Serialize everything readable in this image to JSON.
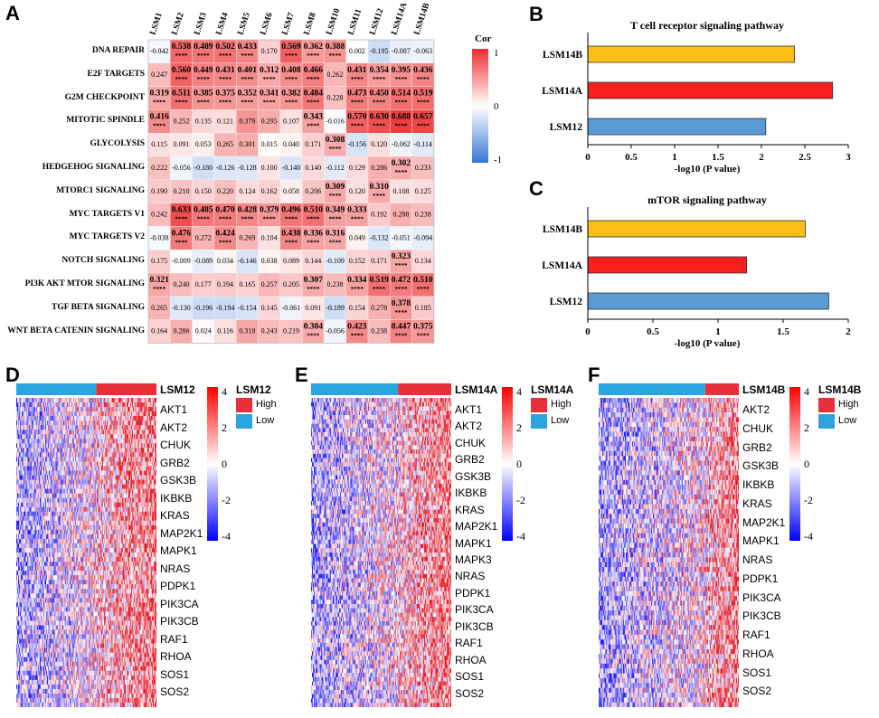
{
  "panels": {
    "a": "A",
    "b": "B",
    "c": "C",
    "d": "D",
    "e": "E",
    "f": "F"
  },
  "corr_heatmap": {
    "legend_title": "Cor",
    "legend_ticks": [
      "1",
      "0",
      "-1"
    ],
    "columns": [
      "LSM1",
      "LSM2",
      "LSM3",
      "LSM4",
      "LSM5",
      "LSM6",
      "LSM7",
      "LSM8",
      "LSM10",
      "LSM11",
      "LSM12",
      "LSM14A",
      "LSM14B"
    ],
    "rows": [
      "DNA REPAIR",
      "E2F TARGETS",
      "G2M CHECKPOINT",
      "MITOTIC SPINDLE",
      "GLYCOLYSIS",
      "HEDGEHOG SIGNALING",
      "MTORC1 SIGNALING",
      "MYC TARGETS V1",
      "MYC TARGETS V2",
      "NOTCH SIGNALING",
      "PI3K AKT MTOR SIGNALING",
      "TGF BETA SIGNALING",
      "WNT BETA CATENIN SIGNALING"
    ],
    "values": [
      [
        "-0.042",
        "0.538",
        "0.489",
        "0.502",
        "0.433",
        "0.170",
        "0.569",
        "0.362",
        "0.388",
        "0.002",
        "-0.195",
        "-0.087",
        "-0.063"
      ],
      [
        "0.247",
        "0.560",
        "0.449",
        "0.431",
        "0.401",
        "0.312",
        "0.408",
        "0.466",
        "0.262",
        "0.431",
        "0.354",
        "0.395",
        "0.436"
      ],
      [
        "0.319",
        "0.511",
        "0.385",
        "0.375",
        "0.352",
        "0.341",
        "0.382",
        "0.484",
        "0.228",
        "0.473",
        "0.450",
        "0.514",
        "0.519"
      ],
      [
        "0.416",
        "0.252",
        "0.135",
        "0.121",
        "0.379",
        "0.295",
        "0.107",
        "0.343",
        "-0.016",
        "0.570",
        "0.630",
        "0.688",
        "0.657"
      ],
      [
        "0.115",
        "0.091",
        "0.053",
        "0.265",
        "0.301",
        "0.015",
        "0.040",
        "0.171",
        "0.308",
        "-0.156",
        "0.120",
        "-0.062",
        "-0.114"
      ],
      [
        "0.222",
        "-0.056",
        "-0.180",
        "-0.126",
        "-0.128",
        "0.100",
        "-0.140",
        "0.140",
        "-0.112",
        "0.129",
        "0.286",
        "0.302",
        "0.233"
      ],
      [
        "0.190",
        "0.210",
        "0.150",
        "0.220",
        "0.124",
        "0.162",
        "0.058",
        "0.206",
        "0.309",
        "0.120",
        "0.310",
        "0.108",
        "0.125"
      ],
      [
        "0.242",
        "0.633",
        "0.485",
        "0.470",
        "0.428",
        "0.379",
        "0.496",
        "0.510",
        "0.349",
        "0.333",
        "0.192",
        "0.288",
        "0.238"
      ],
      [
        "-0.038",
        "0.476",
        "0.272",
        "0.424",
        "0.269",
        "0.104",
        "0.438",
        "0.336",
        "0.316",
        "0.049",
        "-0.132",
        "-0.051",
        "-0.094"
      ],
      [
        "0.175",
        "-0.009",
        "-0.089",
        "0.034",
        "-0.146",
        "0.038",
        "0.089",
        "0.144",
        "-0.109",
        "0.152",
        "0.171",
        "0.323",
        "0.134"
      ],
      [
        "0.321",
        "0.240",
        "0.177",
        "0.194",
        "0.165",
        "0.257",
        "0.205",
        "0.307",
        "0.238",
        "0.334",
        "0.519",
        "0.472",
        "0.510"
      ],
      [
        "0.265",
        "-0.130",
        "-0.196",
        "-0.194",
        "-0.154",
        "0.145",
        "-0.061",
        "0.091",
        "-0.189",
        "0.154",
        "0.278",
        "0.378",
        "0.185"
      ],
      [
        "0.164",
        "0.286",
        "0.024",
        "0.116",
        "0.318",
        "0.243",
        "0.219",
        "0.304",
        "-0.056",
        "0.423",
        "0.238",
        "0.447",
        "0.375"
      ]
    ],
    "significance": [
      [
        "",
        "****",
        "****",
        "****",
        "****",
        "",
        "****",
        "****",
        "****",
        "",
        "",
        "",
        ""
      ],
      [
        "",
        "****",
        "****",
        "****",
        "****",
        "****",
        "****",
        "****",
        "",
        "****",
        "****",
        "****",
        "****"
      ],
      [
        "****",
        "****",
        "****",
        "****",
        "****",
        "****",
        "****",
        "****",
        "",
        "****",
        "****",
        "****",
        "****"
      ],
      [
        "****",
        "",
        "",
        "",
        "",
        "",
        "",
        "****",
        "",
        "****",
        "****",
        "****",
        "****"
      ],
      [
        "",
        "",
        "",
        "",
        "",
        "",
        "",
        "",
        "****",
        "",
        "",
        "",
        ""
      ],
      [
        "",
        "",
        "",
        "",
        "",
        "",
        "",
        "",
        "",
        "",
        "",
        "****",
        ""
      ],
      [
        "",
        "",
        "",
        "",
        "",
        "",
        "",
        "",
        "****",
        "",
        "****",
        "",
        ""
      ],
      [
        "",
        "****",
        "****",
        "****",
        "****",
        "****",
        "****",
        "****",
        "****",
        "****",
        "",
        "",
        ""
      ],
      [
        "",
        "****",
        "",
        "****",
        "",
        "",
        "****",
        "****",
        "****",
        "",
        "",
        "",
        ""
      ],
      [
        "",
        "",
        "",
        "",
        "",
        "",
        "",
        "",
        "",
        "",
        "",
        "****",
        ""
      ],
      [
        "****",
        "",
        "",
        "",
        "",
        "",
        "",
        "****",
        "",
        "****",
        "****",
        "****",
        "****"
      ],
      [
        "",
        "",
        "",
        "",
        "",
        "",
        "",
        "",
        "",
        "",
        "",
        "****",
        ""
      ],
      [
        "",
        "",
        "",
        "",
        "",
        "",
        "",
        "****",
        "",
        "****",
        "",
        "****",
        "****"
      ]
    ]
  },
  "chart_data": [
    {
      "type": "bar",
      "orientation": "horizontal",
      "title": "T cell receptor signaling pathway",
      "xlabel": "-log10 (P value)",
      "categories": [
        "LSM14B",
        "LSM14A",
        "LSM12"
      ],
      "values": [
        2.38,
        2.82,
        2.05
      ],
      "colors": [
        "#fbbf15",
        "#f51f1f",
        "#5b9bd5"
      ],
      "xlim": [
        0,
        3
      ],
      "xticks": [
        "0",
        "0.5",
        "1",
        "1.5",
        "2",
        "2.5",
        "3"
      ]
    },
    {
      "type": "bar",
      "orientation": "horizontal",
      "title": "mTOR signaling pathway",
      "xlabel": "-log10 (P value)",
      "categories": [
        "LSM14B",
        "LSM14A",
        "LSM12"
      ],
      "values": [
        1.67,
        1.22,
        1.85
      ],
      "colors": [
        "#fbbf15",
        "#f51f1f",
        "#5b9bd5"
      ],
      "xlim": [
        0,
        2
      ],
      "xticks": [
        "0",
        "0.5",
        "1",
        "1.5",
        "2"
      ]
    }
  ],
  "expr_heatmaps": [
    {
      "id": "d",
      "label": "LSM12",
      "split": 0.57,
      "scale_ticks": [
        "4",
        "2",
        "0",
        "-2",
        "-4"
      ],
      "legend_high": "High",
      "legend_low": "Low",
      "genes": [
        "AKT1",
        "AKT2",
        "CHUK",
        "GRB2",
        "GSK3B",
        "IKBKB",
        "KRAS",
        "MAP2K1",
        "MAPK1",
        "NRAS",
        "PDPK1",
        "PIK3CA",
        "PIK3CB",
        "RAF1",
        "RHOA",
        "SOS1",
        "SOS2"
      ]
    },
    {
      "id": "e",
      "label": "LSM14A",
      "split": 0.62,
      "scale_ticks": [
        "4",
        "2",
        "0",
        "-2",
        "-4"
      ],
      "legend_high": "High",
      "legend_low": "Low",
      "genes": [
        "AKT1",
        "AKT2",
        "CHUK",
        "GRB2",
        "GSK3B",
        "IKBKB",
        "KRAS",
        "MAP2K1",
        "MAPK1",
        "MAPK3",
        "NRAS",
        "PDPK1",
        "PIK3CA",
        "PIK3CB",
        "RAF1",
        "RHOA",
        "SOS1",
        "SOS2"
      ]
    },
    {
      "id": "f",
      "label": "LSM14B",
      "split": 0.76,
      "scale_ticks": [
        "4",
        "2",
        "0",
        "-2",
        "-4"
      ],
      "legend_high": "High",
      "legend_low": "Low",
      "genes": [
        "AKT2",
        "CHUK",
        "GRB2",
        "GSK3B",
        "IKBKB",
        "KRAS",
        "MAP2K1",
        "MAPK1",
        "NRAS",
        "PDPK1",
        "PIK3CA",
        "PIK3CB",
        "RAF1",
        "RHOA",
        "SOS1",
        "SOS2"
      ]
    }
  ],
  "colors": {
    "high": "#e8303a",
    "low": "#2ba5e0",
    "heat_pos": "#e8202a",
    "heat_neg": "#1a1aff"
  }
}
